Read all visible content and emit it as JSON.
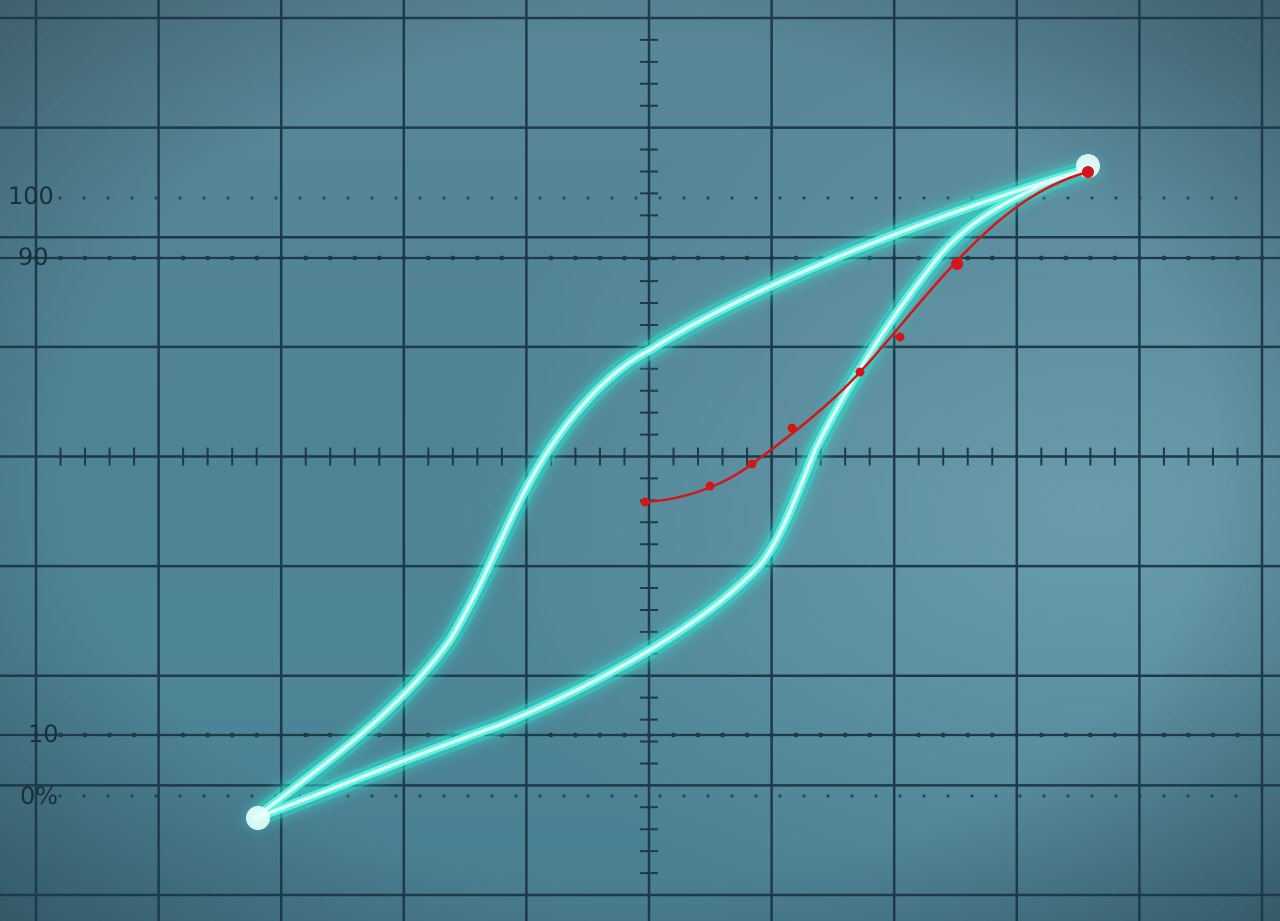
{
  "graticule": {
    "divisions_x": 10,
    "divisions_y": 8,
    "minor_ticks_per_division": 5,
    "line_color": "#1c3a4a"
  },
  "scale_labels": {
    "label_100": "100",
    "label_90": "90",
    "label_10": "10",
    "label_0": "0%"
  },
  "trace": {
    "description_type": "hysteresis-loop",
    "color": "#5ff2e0",
    "glow_color": "#2fe6d0"
  },
  "overlay": {
    "color": "#d4161a",
    "marked_point_count": 8
  }
}
